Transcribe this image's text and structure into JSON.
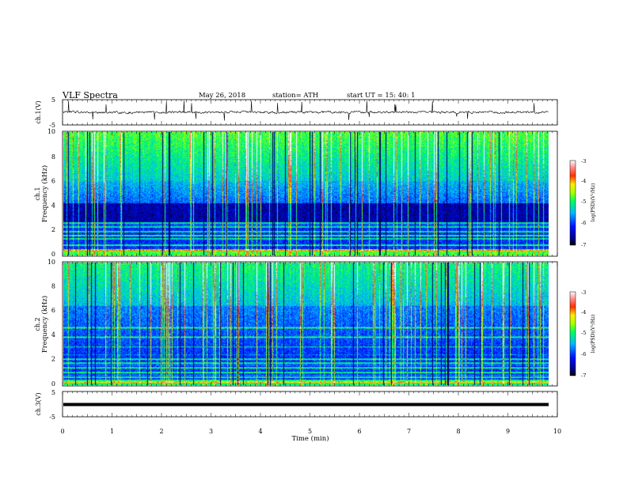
{
  "header": {
    "title": "VLF  Spectra",
    "date": "May 26, 2018",
    "station": "station= ATH",
    "start": "start  UT  =    15: 40: 1"
  },
  "chart_data": [
    {
      "type": "line",
      "name": "waveform-ch1",
      "ylabel": "ch.1(V)",
      "ylim": [
        -5,
        5
      ],
      "yticks": [
        "5",
        "-5"
      ],
      "xlim": [
        0,
        10
      ]
    },
    {
      "type": "heatmap",
      "name": "spectrogram-ch1",
      "ylabel_line1": "ch.1",
      "ylabel_line2": "Frequency (kHz)",
      "ylim": [
        0,
        10
      ],
      "yticks": [
        "10",
        "8",
        "6",
        "4",
        "2",
        "0"
      ],
      "xlim": [
        0,
        10
      ],
      "colorbar": {
        "label": "log(PSD)(V²/Hz)",
        "range": [
          -7,
          -3
        ],
        "ticks": [
          "-3",
          "-4",
          "-5",
          "-6",
          "-7"
        ]
      }
    },
    {
      "type": "heatmap",
      "name": "spectrogram-ch2",
      "ylabel_line1": "ch.2",
      "ylabel_line2": "Frequency (kHz)",
      "ylim": [
        0,
        10
      ],
      "yticks": [
        "10",
        "8",
        "6",
        "4",
        "2",
        "0"
      ],
      "xlim": [
        0,
        10
      ],
      "colorbar": {
        "label": "log(PSD)(V²/Hz)",
        "range": [
          -7,
          -3
        ],
        "ticks": [
          "-3",
          "-4",
          "-5",
          "-6",
          "-7"
        ]
      }
    },
    {
      "type": "line",
      "name": "waveform-ch3",
      "ylabel": "ch.3(V)",
      "ylim": [
        -5,
        5
      ],
      "yticks": [
        "5",
        "-5"
      ],
      "xlim": [
        0,
        10
      ]
    }
  ],
  "xaxis": {
    "label": "Time  (min)",
    "ticks": [
      "0",
      "1",
      "2",
      "3",
      "4",
      "5",
      "6",
      "7",
      "8",
      "9",
      "10"
    ]
  }
}
